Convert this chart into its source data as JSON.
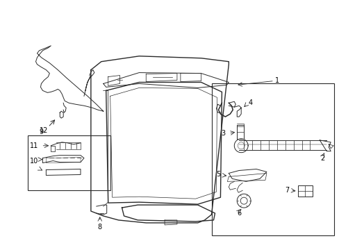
{
  "bg_color": "#ffffff",
  "line_color": "#2a2a2a",
  "fig_width": 4.89,
  "fig_height": 3.6,
  "dpi": 100
}
